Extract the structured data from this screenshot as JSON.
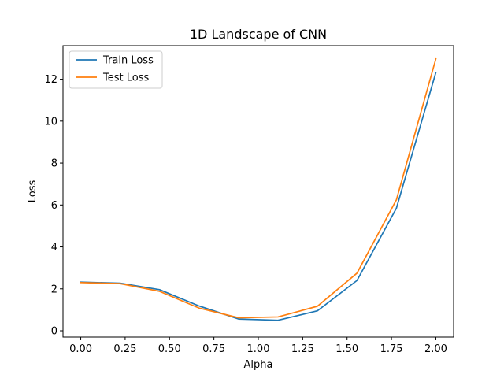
{
  "chart_data": {
    "type": "line",
    "title": "1D Landscape of CNN",
    "xlabel": "Alpha",
    "ylabel": "Loss",
    "xlim": [
      -0.1,
      2.1
    ],
    "ylim": [
      -0.3,
      13.6
    ],
    "x_ticks": [
      "0.00",
      "0.25",
      "0.50",
      "0.75",
      "1.00",
      "1.25",
      "1.50",
      "1.75",
      "2.00"
    ],
    "y_ticks": [
      "0",
      "2",
      "4",
      "6",
      "8",
      "10",
      "12"
    ],
    "x": [
      0.0,
      0.222,
      0.444,
      0.667,
      0.889,
      1.111,
      1.333,
      1.556,
      1.778,
      2.0
    ],
    "series": [
      {
        "name": "Train Loss",
        "color": "#1f77b4",
        "values": [
          2.32,
          2.27,
          1.96,
          1.18,
          0.56,
          0.5,
          0.95,
          2.4,
          5.85,
          12.32
        ]
      },
      {
        "name": "Test Loss",
        "color": "#ff7f0e",
        "values": [
          2.3,
          2.25,
          1.88,
          1.08,
          0.62,
          0.66,
          1.17,
          2.75,
          6.25,
          12.97
        ]
      }
    ],
    "legend": "top-left",
    "grid": false
  }
}
